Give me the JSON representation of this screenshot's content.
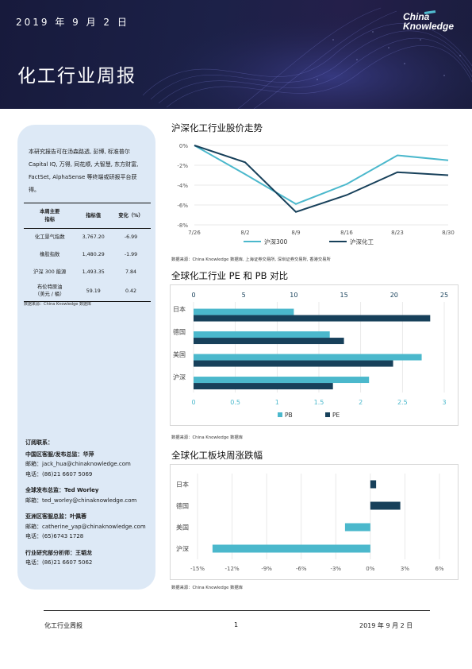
{
  "header": {
    "date": "2019 年 9 月 2 日",
    "title": "化工行业周报",
    "logo_line1": "China",
    "logo_line2": "Knowledge"
  },
  "sidebar": {
    "disclaimer": "本研究报告可在汤森路透, 彭博, 标准普尔 Capital IQ, 万得, 同花顺, 大智慧, 东方财富, FactSet, AlphaSense 等终端或研报平台获得。",
    "table": {
      "headers": [
        "本周主要\n指标",
        "指标值",
        "变化（%）"
      ],
      "rows": [
        [
          "化工景气指数",
          "3,767.20",
          "-6.99"
        ],
        [
          "橡胶指数",
          "1,480.29",
          "-1.99"
        ],
        [
          "沪深 300 能源",
          "1,493.35",
          "7.84"
        ],
        [
          "布伦特原油\n（美元 / 桶）",
          "59.19",
          "0.42"
        ]
      ]
    },
    "table_source": "数据来源：China Knowledge 数据库",
    "contacts": [
      {
        "head": "订阅联系：",
        "lines": []
      },
      {
        "head": "中国区客服/发布总监：华萍",
        "lines": [
          "邮箱：jack_hua@chinaknowledge.com",
          "电话：(86)21 6607 5069"
        ]
      },
      {
        "head": "全球发布总监：Ted Worley",
        "lines": [
          "邮箱：ted_worley@chinaknowledge.com"
        ]
      },
      {
        "head": "亚洲区客服总监：叶佩蓉",
        "lines": [
          "邮箱：catherine_yap@chinaknowledge.com",
          "电话：(65)6743 1728"
        ]
      },
      {
        "head": "行业研究部分析师：王韬龙",
        "lines": [
          "电话：(86)21 6607 5062"
        ]
      }
    ]
  },
  "section1": {
    "title": "沪深化工行业股价走势",
    "source": "数据来源：China Knowledge 数据库, 上海证券交易所, 深圳证券交易所, 香港交易所"
  },
  "section2": {
    "title": "全球化工行业 PE 和 PB 对比",
    "source": "数据来源：China Knowledge 数据库"
  },
  "section3": {
    "title": "全球化工板块周涨跌幅",
    "source": "数据来源：China Knowledge 数据库"
  },
  "footer": {
    "left": "化工行业周报",
    "page": "1",
    "right": "2019 年 9 月 2 日"
  },
  "colors": {
    "light": "#4bb8cc",
    "dark": "#17405a",
    "banner": "#1c2148",
    "sidebar": "#dde9f6"
  },
  "chart_data": [
    {
      "type": "line",
      "x": [
        "7/26",
        "8/2",
        "8/9",
        "8/16",
        "8/23",
        "8/30"
      ],
      "ylim": [
        -8,
        0
      ],
      "yticks": [
        "0%",
        "-2%",
        "-4%",
        "-6%",
        "-8%"
      ],
      "ytick_values": [
        0,
        -2,
        -4,
        -6,
        -8
      ],
      "series": [
        {
          "name": "沪深300",
          "color": "#4bb8cc",
          "values": [
            0,
            -2.9,
            -5.9,
            -3.9,
            -1.0,
            -1.5
          ]
        },
        {
          "name": "沪深化工",
          "color": "#17405a",
          "values": [
            0,
            -1.7,
            -6.7,
            -5.0,
            -2.7,
            -3.0
          ]
        }
      ],
      "legend": "bottom",
      "grid": true
    },
    {
      "type": "bar",
      "orientation": "horizontal",
      "categories": [
        "日本",
        "德国",
        "美国",
        "沪深"
      ],
      "top_axis": {
        "label_values": [
          "0",
          "5",
          "10",
          "15",
          "20",
          "25"
        ],
        "range": [
          0,
          25
        ]
      },
      "bottom_axis": {
        "label_values": [
          "0",
          "0.5",
          "1",
          "1.5",
          "2",
          "2.5",
          "3"
        ],
        "range": [
          0,
          3
        ]
      },
      "series": [
        {
          "name": "PB",
          "color": "#4bb8cc",
          "axis": "bottom",
          "values": [
            1.2,
            1.63,
            2.73,
            2.1
          ]
        },
        {
          "name": "PE",
          "color": "#17405a",
          "axis": "top",
          "values": [
            23.6,
            15.0,
            19.9,
            13.9
          ]
        }
      ],
      "legend": "bottom",
      "grid": true
    },
    {
      "type": "bar",
      "orientation": "horizontal",
      "categories": [
        "日本",
        "德国",
        "美国",
        "沪深"
      ],
      "xticks": [
        "-15%",
        "-12%",
        "-9%",
        "-6%",
        "-3%",
        "0%",
        "3%",
        "6%"
      ],
      "xtick_values": [
        -15,
        -12,
        -9,
        -6,
        -3,
        0,
        3,
        6
      ],
      "xlim": [
        -15,
        6
      ],
      "values": [
        0.5,
        2.6,
        -2.2,
        -13.7
      ],
      "colors": [
        "#17405a",
        "#17405a",
        "#4bb8cc",
        "#4bb8cc"
      ],
      "grid": true
    }
  ]
}
